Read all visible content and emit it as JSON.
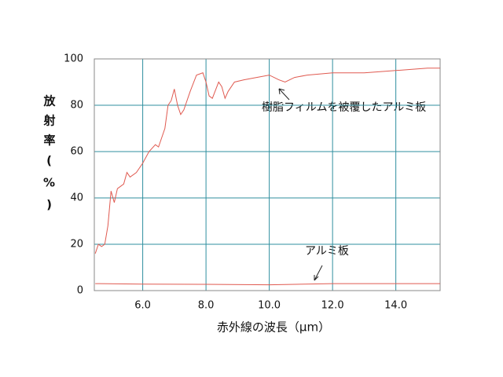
{
  "chart_data": {
    "type": "line",
    "x_label": "赤外線の波長（μm）",
    "y_label": "放射率(%)",
    "xlim": [
      4.47,
      15.4
    ],
    "ylim": [
      0,
      100
    ],
    "xticks": [
      {
        "value": 6,
        "label": "6.0"
      },
      {
        "value": 8,
        "label": "8.0"
      },
      {
        "value": 10,
        "label": "10.0"
      },
      {
        "value": 12,
        "label": "12.0"
      },
      {
        "value": 14,
        "label": "14.0"
      }
    ],
    "yticks": [
      0,
      20,
      40,
      60,
      80,
      100
    ],
    "grid": true,
    "series": [
      {
        "name": "樹脂フィルムを被覆したアルミ板",
        "color": "#e05a50",
        "x": [
          4.5,
          4.6,
          4.7,
          4.8,
          4.9,
          5.0,
          5.1,
          5.2,
          5.4,
          5.5,
          5.6,
          5.8,
          6.0,
          6.2,
          6.4,
          6.5,
          6.7,
          6.8,
          6.9,
          7.0,
          7.1,
          7.2,
          7.3,
          7.5,
          7.7,
          7.9,
          8.0,
          8.1,
          8.2,
          8.4,
          8.5,
          8.6,
          8.7,
          8.9,
          9.2,
          9.6,
          10.0,
          10.3,
          10.5,
          10.8,
          11.2,
          12.0,
          13.0,
          14.0,
          15.0,
          15.4
        ],
        "values": [
          16,
          20,
          19,
          20,
          28,
          43,
          38,
          44,
          46,
          51,
          49,
          51,
          55,
          60,
          63,
          62,
          70,
          80,
          82,
          87,
          80,
          76,
          78,
          86,
          93,
          94,
          90,
          84,
          83,
          90,
          88,
          83,
          86,
          90,
          91,
          92,
          93,
          91,
          90,
          92,
          93,
          94,
          94,
          95,
          96,
          96
        ]
      },
      {
        "name": "アルミ板",
        "color": "#e05a50",
        "x": [
          4.5,
          6.0,
          8.0,
          10.0,
          12.0,
          14.0,
          15.4
        ],
        "values": [
          3,
          2.8,
          2.7,
          2.5,
          3,
          3,
          3
        ]
      }
    ]
  }
}
